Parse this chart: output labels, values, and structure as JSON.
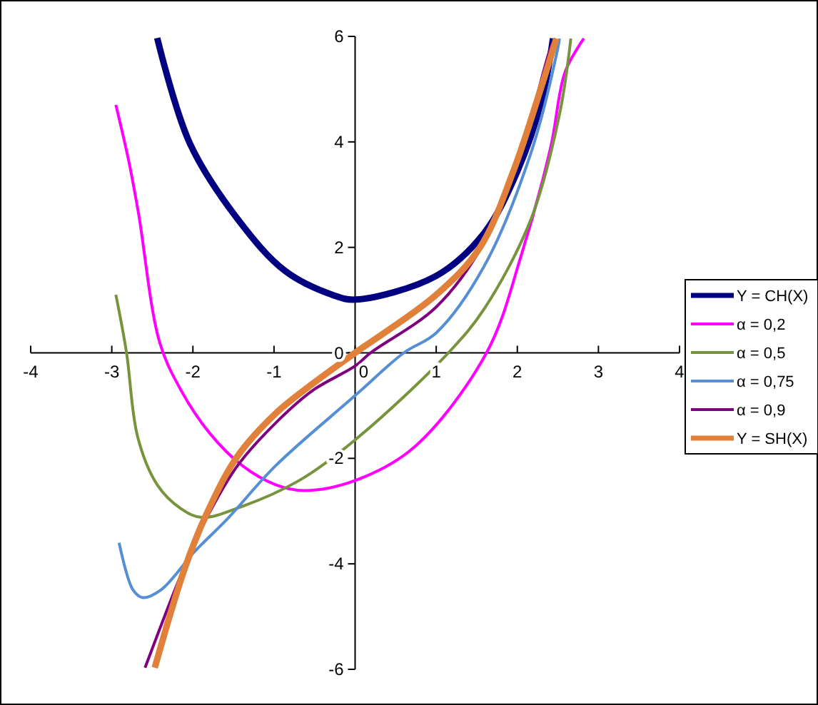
{
  "chart_data": {
    "type": "line",
    "xlim": [
      -4,
      4
    ],
    "ylim": [
      -6,
      6
    ],
    "xticks": [
      -4,
      -3,
      -2,
      -1,
      0,
      1,
      2,
      3,
      4
    ],
    "yticks": [
      -6,
      -4,
      -2,
      0,
      2,
      4,
      6
    ],
    "grid": false,
    "legend": "right",
    "marker": "none",
    "line_style": "solid",
    "series": [
      {
        "name": "Y = CH(X)",
        "color": "#000080",
        "x": [
          -2.44,
          -2.04,
          -1.45,
          -0.86,
          -0.28,
          0,
          1,
          1.59,
          2,
          2.3,
          2.44
        ],
        "values": [
          5.97,
          3.98,
          2.54,
          1.55,
          1.1,
          1.01,
          1.46,
          2.27,
          3.44,
          4.79,
          5.96
        ]
      },
      {
        "name": "α = 0,2",
        "color": "#ff00ff",
        "x": [
          -2.95,
          -2.79,
          -2.67,
          -2.41,
          -2.15,
          -1.8,
          -1.39,
          -0.98,
          -0.63,
          0,
          0.72,
          1.62,
          2.06,
          2.41,
          2.59,
          2.82
        ],
        "values": [
          4.7,
          3.63,
          2.64,
          0.2,
          -0.7,
          -1.51,
          -2.14,
          -2.5,
          -2.61,
          -2.42,
          -1.8,
          0,
          1.91,
          3.89,
          5.33,
          5.96
        ]
      },
      {
        "name": "α = 0,5",
        "color": "#77933c",
        "x": [
          -2.95,
          -2.82,
          -2.68,
          -2.44,
          -2.15,
          -1.89,
          -1.39,
          -0.69,
          0,
          1.15,
          1.59,
          2.17,
          2.52,
          2.66
        ],
        "values": [
          1.1,
          0.02,
          -1.6,
          -2.5,
          -2.95,
          -3.12,
          -2.91,
          -2.42,
          -1.65,
          0,
          0.83,
          2.54,
          4.52,
          5.96
        ]
      },
      {
        "name": "α = 0,75",
        "color": "#558ed5",
        "x": [
          -2.91,
          -2.74,
          -2.62,
          -2.39,
          -1.98,
          -1.57,
          -0.98,
          0,
          0.6,
          1,
          1.59,
          2.17,
          2.5,
          2.52
        ],
        "values": [
          -3.6,
          -4.49,
          -4.64,
          -4.49,
          -3.77,
          -3.14,
          -2.14,
          -0.81,
          0,
          0.38,
          1.64,
          3.8,
          5.78,
          5.96
        ]
      },
      {
        "name": "α = 0,9",
        "color": "#7f007f",
        "x": [
          -2.59,
          -2.15,
          -1.86,
          -1.45,
          -0.98,
          -0.51,
          0,
          0.19,
          1,
          1.59,
          2.06,
          2.41,
          2.47
        ],
        "values": [
          -5.97,
          -4.22,
          -3.22,
          -2.14,
          -1.33,
          -0.7,
          -0.25,
          0,
          0.87,
          2.09,
          3.89,
          5.78,
          5.96
        ]
      },
      {
        "name": "Y = SH(X)",
        "color": "#e0803a",
        "x": [
          -2.47,
          -2.09,
          -1.8,
          -1.45,
          -0.98,
          -0.51,
          0,
          1,
          1.54,
          1.95,
          2.3,
          2.48
        ],
        "values": [
          -5.97,
          -4.04,
          -2.95,
          -1.96,
          -1.15,
          -0.57,
          0,
          1.1,
          2,
          3.44,
          5.06,
          5.96
        ]
      }
    ]
  }
}
